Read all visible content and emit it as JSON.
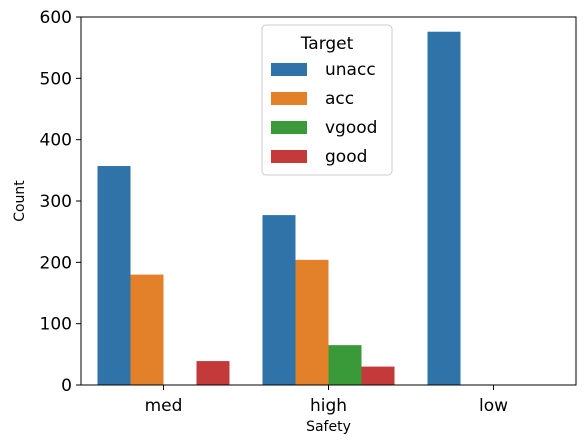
{
  "chart_data": {
    "type": "bar",
    "xlabel": "Safety",
    "ylabel": "Count",
    "categories": [
      "med",
      "high",
      "low"
    ],
    "ylim": [
      0,
      600
    ],
    "yticks": [
      0,
      100,
      200,
      300,
      400,
      500,
      600
    ],
    "legend_title": "Target",
    "legend_position": "top-center",
    "grid": false,
    "series": [
      {
        "name": "unacc",
        "color": "#2f73a8",
        "values": [
          357,
          277,
          576
        ]
      },
      {
        "name": "acc",
        "color": "#e3812b",
        "values": [
          180,
          204,
          0
        ]
      },
      {
        "name": "vgood",
        "color": "#3a9a3a",
        "values": [
          0,
          65,
          0
        ]
      },
      {
        "name": "good",
        "color": "#c43a3a",
        "values": [
          39,
          30,
          0
        ]
      }
    ]
  }
}
